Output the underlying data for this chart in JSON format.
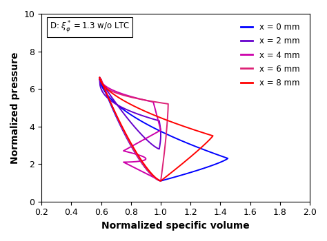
{
  "title": "D: $\\xi^*_\\varphi = 1.3$ w/o LTC",
  "xlabel": "Normalized specific volume",
  "ylabel": "Normalized pressure",
  "xlim": [
    0.2,
    2.0
  ],
  "ylim": [
    0,
    10
  ],
  "xticks": [
    0.2,
    0.4,
    0.6,
    0.8,
    1.0,
    1.2,
    1.4,
    1.6,
    1.8,
    2.0
  ],
  "yticks": [
    0,
    2,
    4,
    6,
    8,
    10
  ],
  "legend_labels": [
    "x = 0 mm",
    "x = 2 mm",
    "x = 4 mm",
    "x = 6 mm",
    "x = 8 mm"
  ],
  "line_colors": [
    "#0000FF",
    "#6600CC",
    "#CC00AA",
    "#DD2277",
    "#FF0000"
  ],
  "background_color": "#ffffff"
}
